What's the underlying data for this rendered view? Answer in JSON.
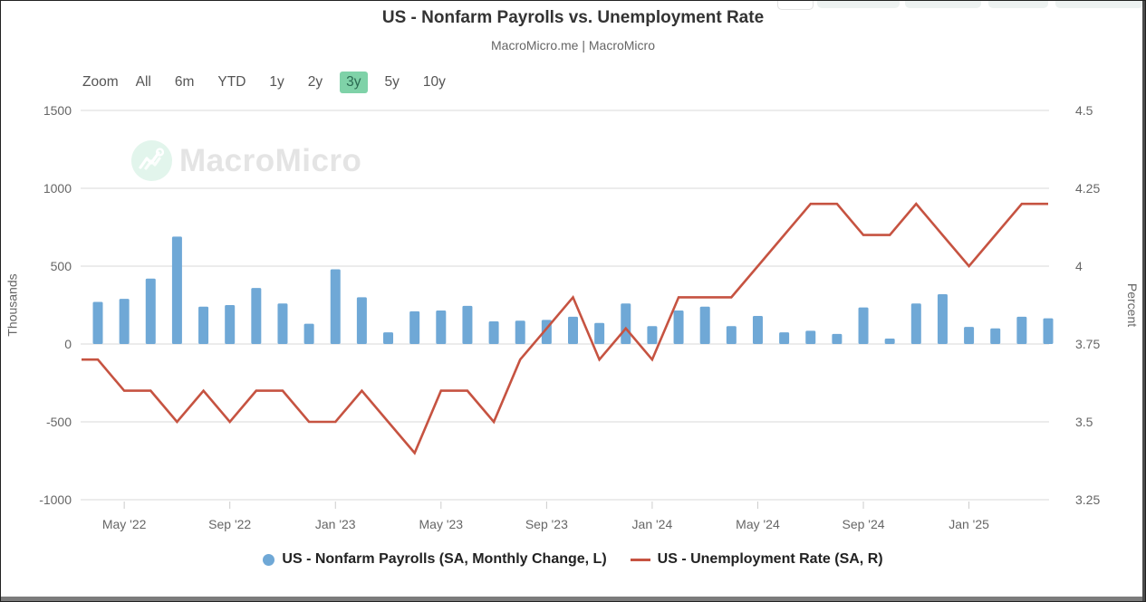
{
  "header": {
    "title": "US - Nonfarm Payrolls vs. Unemployment Rate",
    "subtitle": "MacroMicro.me | MacroMicro"
  },
  "toolbar": {
    "zoom_label": "Zoom",
    "ranges": [
      "All",
      "6m",
      "YTD",
      "1y",
      "2y",
      "3y",
      "5y",
      "10y"
    ],
    "active_range": "3y"
  },
  "watermark": {
    "text": "MacroMicro"
  },
  "colors": {
    "bar": "#6fa8d6",
    "line": "#c65341",
    "grid": "#ececec",
    "tick_text": "#666666",
    "active_range_bg": "#7fd2a8"
  },
  "chart_data": {
    "type": "bar",
    "title": "US - Nonfarm Payrolls vs. Unemployment Rate",
    "subtitle": "MacroMicro.me | MacroMicro",
    "grid": "horizontal only",
    "legend_position": "bottom",
    "x_months": [
      "Apr 2022",
      "May 2022",
      "Jun 2022",
      "Jul 2022",
      "Aug 2022",
      "Sep 2022",
      "Oct 2022",
      "Nov 2022",
      "Dec 2022",
      "Jan 2023",
      "Feb 2023",
      "Mar 2023",
      "Apr 2023",
      "May 2023",
      "Jun 2023",
      "Jul 2023",
      "Aug 2023",
      "Sep 2023",
      "Oct 2023",
      "Nov 2023",
      "Dec 2023",
      "Jan 2024",
      "Feb 2024",
      "Mar 2024",
      "Apr 2024",
      "May 2024",
      "Jun 2024",
      "Jul 2024",
      "Aug 2024",
      "Sep 2024",
      "Oct 2024",
      "Nov 2024",
      "Dec 2024",
      "Jan 2025",
      "Feb 2025",
      "Mar 2025",
      "Apr 2025"
    ],
    "series": [
      {
        "name": "US - Nonfarm Payrolls (SA, Monthly Change, L)",
        "type": "bar",
        "axis": "left",
        "color": "#6fa8d6",
        "values": [
          270,
          290,
          420,
          690,
          240,
          250,
          360,
          260,
          130,
          480,
          300,
          75,
          210,
          215,
          245,
          145,
          150,
          155,
          175,
          135,
          260,
          115,
          215,
          240,
          115,
          180,
          75,
          85,
          65,
          235,
          35,
          260,
          320,
          110,
          100,
          175,
          165
        ]
      },
      {
        "name": "US - Unemployment Rate (SA, R)",
        "type": "line",
        "axis": "right",
        "color": "#c65341",
        "values": [
          3.7,
          3.6,
          3.6,
          3.5,
          3.6,
          3.5,
          3.6,
          3.6,
          3.5,
          3.5,
          3.6,
          3.5,
          3.4,
          3.6,
          3.6,
          3.5,
          3.7,
          3.8,
          3.9,
          3.7,
          3.8,
          3.7,
          3.9,
          3.9,
          3.9,
          4.0,
          4.1,
          4.2,
          4.2,
          4.1,
          4.1,
          4.2,
          4.1,
          4.0,
          4.1,
          4.2,
          4.2
        ]
      }
    ],
    "left_axis": {
      "title": "Thousands",
      "min": -1000,
      "max": 1500,
      "ticks": [
        "1500",
        "1000",
        "500",
        "0",
        "-500",
        "-1000"
      ]
    },
    "right_axis": {
      "title": "Percent",
      "min": 3.25,
      "max": 4.5,
      "ticks": [
        "4.5",
        "4.25",
        "4",
        "3.75",
        "3.5",
        "3.25"
      ]
    },
    "x_ticks": [
      {
        "label": "May '22",
        "i": 1
      },
      {
        "label": "Sep '22",
        "i": 5
      },
      {
        "label": "Jan '23",
        "i": 9
      },
      {
        "label": "May '23",
        "i": 13
      },
      {
        "label": "Sep '23",
        "i": 17
      },
      {
        "label": "Jan '24",
        "i": 21
      },
      {
        "label": "May '24",
        "i": 25
      },
      {
        "label": "Sep '24",
        "i": 29
      },
      {
        "label": "Jan '25",
        "i": 33
      }
    ]
  }
}
